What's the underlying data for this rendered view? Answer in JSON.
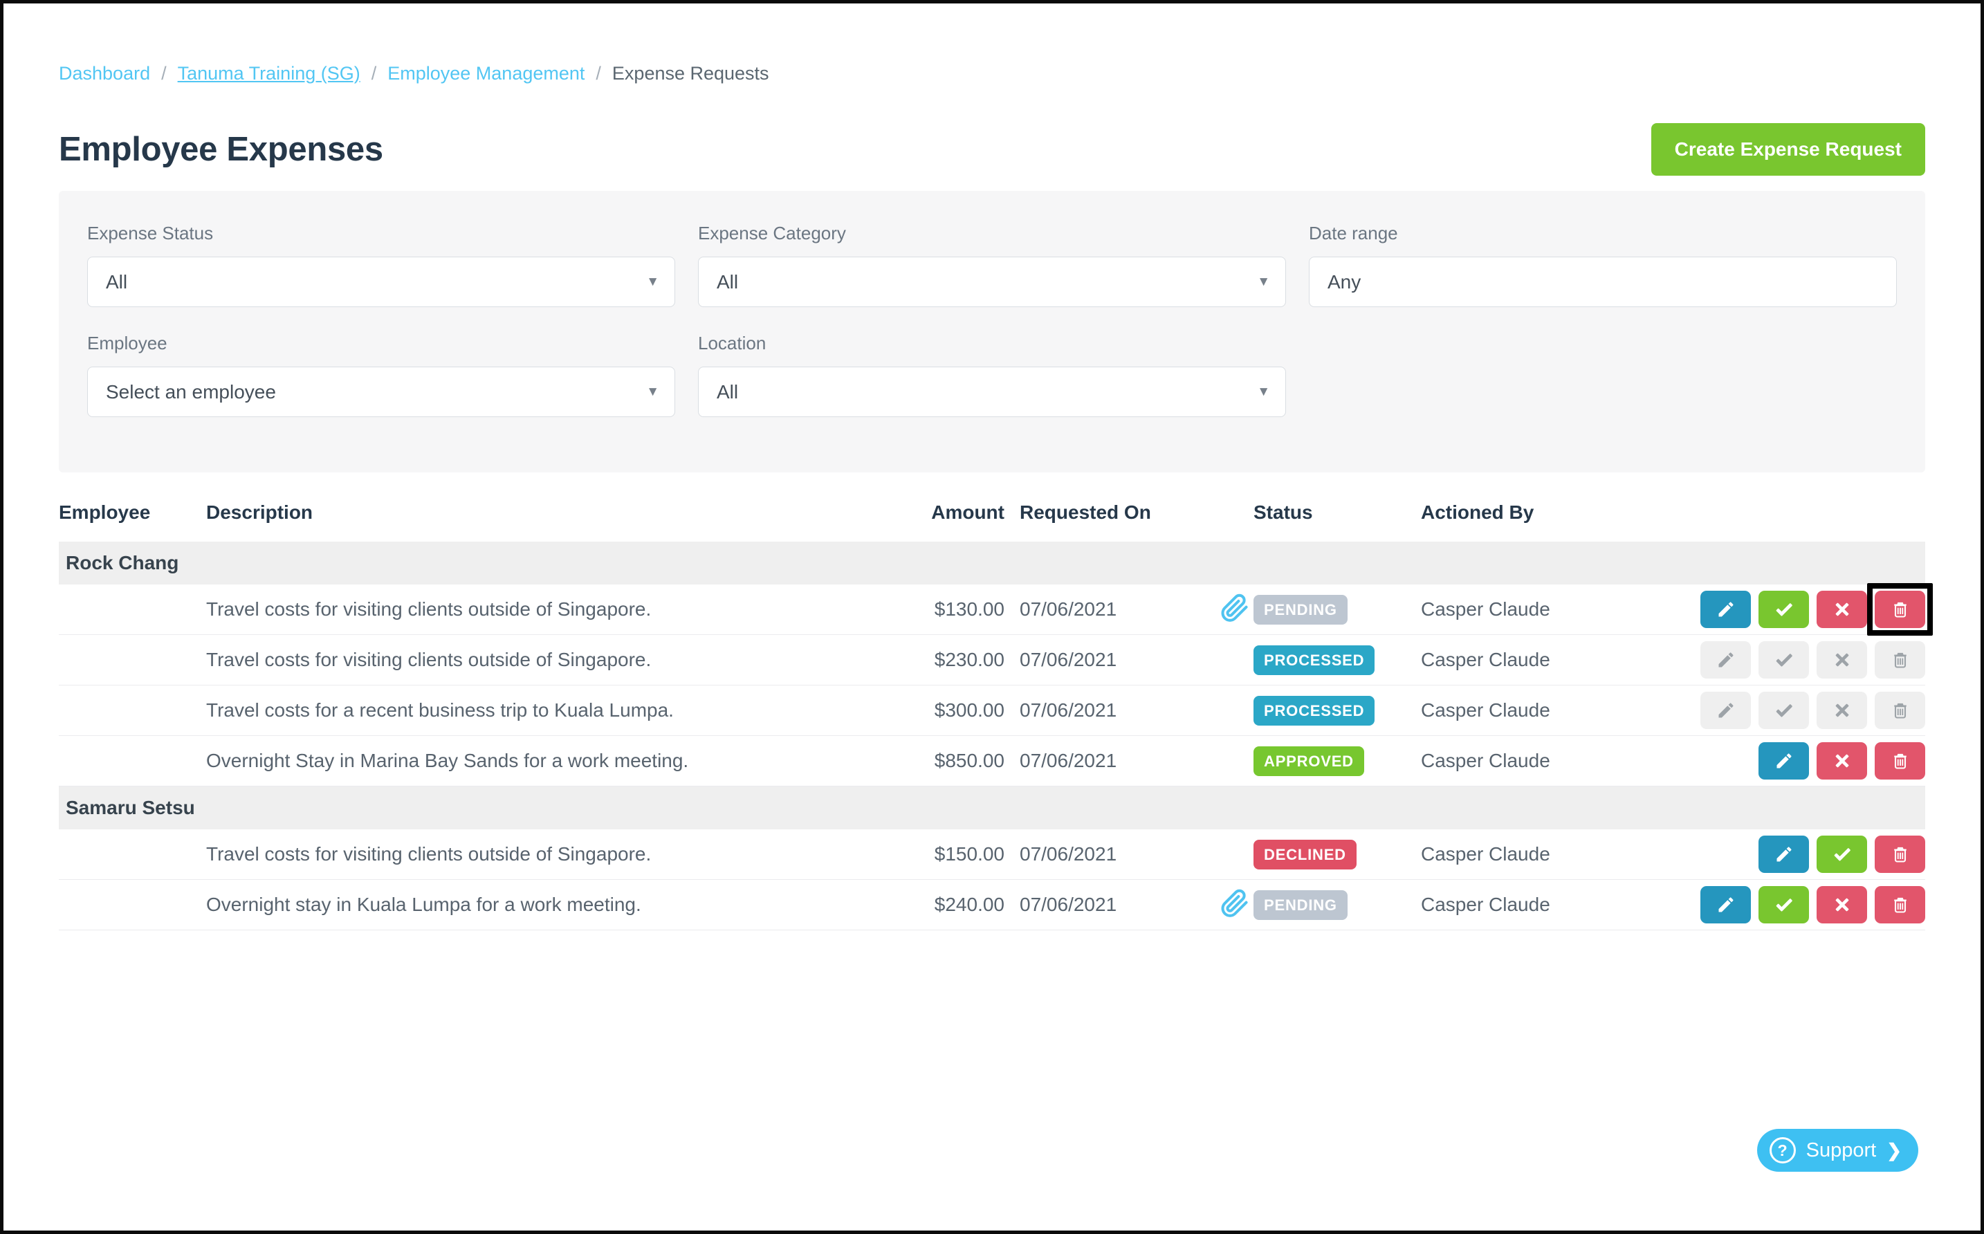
{
  "breadcrumb": {
    "items": [
      {
        "label": "Dashboard"
      },
      {
        "label": "Tanuma Training (SG)"
      },
      {
        "label": "Employee Management"
      },
      {
        "label": "Expense Requests"
      }
    ],
    "separator": "/"
  },
  "page": {
    "title": "Employee Expenses",
    "create_button_label": "Create Expense Request"
  },
  "filters": {
    "expense_status": {
      "label": "Expense Status",
      "value": "All"
    },
    "expense_category": {
      "label": "Expense Category",
      "value": "All"
    },
    "date_range": {
      "label": "Date range",
      "value": "Any"
    },
    "employee": {
      "label": "Employee",
      "value": "Select an employee"
    },
    "location": {
      "label": "Location",
      "value": "All"
    }
  },
  "table": {
    "headers": [
      "Employee",
      "Description",
      "Amount",
      "Requested On",
      "Status",
      "Actioned By"
    ],
    "status_colors": {
      "PENDING": "#bdc6d1",
      "PROCESSED": "#2ba7c7",
      "APPROVED": "#77c72f",
      "DECLINED": "#e04f64"
    },
    "groups": [
      {
        "employee": "Rock Chang",
        "rows": [
          {
            "description": "Travel costs for visiting clients outside of Singapore.",
            "amount": "$130.00",
            "requested_on": "07/06/2021",
            "status": "PENDING",
            "attachment": true,
            "actioned_by": "Casper Claude",
            "actions": [
              {
                "type": "edit",
                "enabled": true
              },
              {
                "type": "approve",
                "enabled": true
              },
              {
                "type": "decline",
                "enabled": true
              },
              {
                "type": "delete",
                "enabled": true,
                "highlighted": true
              }
            ]
          },
          {
            "description": "Travel costs for visiting clients outside of Singapore.",
            "amount": "$230.00",
            "requested_on": "07/06/2021",
            "status": "PROCESSED",
            "attachment": false,
            "actioned_by": "Casper Claude",
            "actions": [
              {
                "type": "edit",
                "enabled": false
              },
              {
                "type": "approve",
                "enabled": false
              },
              {
                "type": "decline",
                "enabled": false
              },
              {
                "type": "delete",
                "enabled": false
              }
            ]
          },
          {
            "description": "Travel costs for a recent business trip to Kuala Lumpa.",
            "amount": "$300.00",
            "requested_on": "07/06/2021",
            "status": "PROCESSED",
            "attachment": false,
            "actioned_by": "Casper Claude",
            "actions": [
              {
                "type": "edit",
                "enabled": false
              },
              {
                "type": "approve",
                "enabled": false
              },
              {
                "type": "decline",
                "enabled": false
              },
              {
                "type": "delete",
                "enabled": false
              }
            ]
          },
          {
            "description": "Overnight Stay in Marina Bay Sands for a work meeting.",
            "amount": "$850.00",
            "requested_on": "07/06/2021",
            "status": "APPROVED",
            "attachment": false,
            "actioned_by": "Casper Claude",
            "actions": [
              {
                "type": "edit",
                "enabled": true
              },
              {
                "type": "decline",
                "enabled": true
              },
              {
                "type": "delete",
                "enabled": true
              }
            ]
          }
        ]
      },
      {
        "employee": "Samaru Setsu",
        "rows": [
          {
            "description": "Travel costs for visiting clients outside of Singapore.",
            "amount": "$150.00",
            "requested_on": "07/06/2021",
            "status": "DECLINED",
            "attachment": false,
            "actioned_by": "Casper Claude",
            "actions": [
              {
                "type": "edit",
                "enabled": true
              },
              {
                "type": "approve",
                "enabled": true
              },
              {
                "type": "delete",
                "enabled": true
              }
            ]
          },
          {
            "description": "Overnight stay in Kuala Lumpa for a work meeting.",
            "amount": "$240.00",
            "requested_on": "07/06/2021",
            "status": "PENDING",
            "attachment": true,
            "actioned_by": "Casper Claude",
            "actions": [
              {
                "type": "edit",
                "enabled": true
              },
              {
                "type": "approve",
                "enabled": true
              },
              {
                "type": "decline",
                "enabled": true
              },
              {
                "type": "delete",
                "enabled": true
              }
            ]
          }
        ]
      }
    ]
  },
  "support": {
    "label": "Support"
  },
  "colors": {
    "link_blue": "#52c6f3",
    "title": "#26384a",
    "create_green": "#79c62f",
    "edit_teal": "#2596be",
    "danger_red": "#e2556b",
    "support_blue": "#3ec0f2",
    "group_band": "#efefef",
    "filter_card": "#f6f6f7"
  }
}
